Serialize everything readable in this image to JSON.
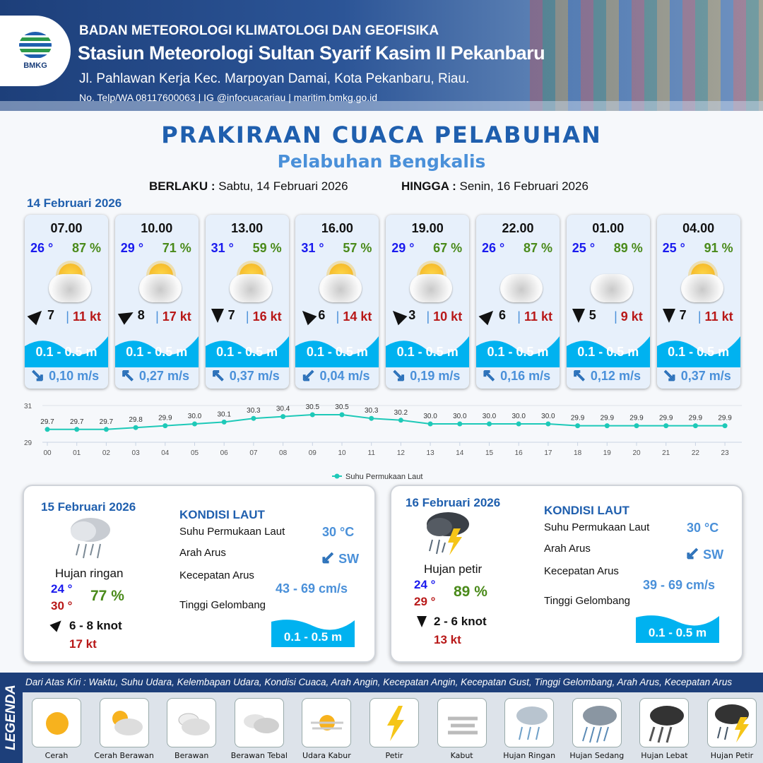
{
  "header": {
    "org": "BADAN METEOROLOGI KLIMATOLOGI DAN GEOFISIKA",
    "station": "Stasiun Meteorologi Sultan Syarif Kasim II Pekanbaru",
    "address": "Jl. Pahlawan Kerja Kec. Marpoyan Damai, Kota Pekanbaru, Riau.",
    "contact": "No. Telp/WA 08117600063 | IG @infocuacariau | maritim.bmkg.go.id",
    "logo_text": "BMKG"
  },
  "title": "PRAKIRAAN CUACA PELABUHAN",
  "subtitle": "Pelabuhan Bengkalis",
  "validity": {
    "from_label": "BERLAKU :",
    "from": "Sabtu, 14 Februari 2026",
    "to_label": "HINGGA :",
    "to": "Senin, 16 Februari 2026"
  },
  "day1_date": "14 Februari 2026",
  "forecasts": [
    {
      "time": "07.00",
      "temp": "26 °",
      "hum": "87 %",
      "cond": "Cerah Berawan",
      "wind_dir_deg": 45,
      "wind": "7",
      "gust": "11 kt",
      "wave": "0.1 - 0.5 m",
      "cur_dir": "↘",
      "cur": "0,10 m/s"
    },
    {
      "time": "10.00",
      "temp": "29 °",
      "hum": "71 %",
      "cond": "Cerah Berawan",
      "wind_dir_deg": 60,
      "wind": "8",
      "gust": "17 kt",
      "wave": "0.1 - 0.5 m",
      "cur_dir": "↖",
      "cur": "0,27 m/s"
    },
    {
      "time": "13.00",
      "temp": "31 °",
      "hum": "59 %",
      "cond": "Cerah Berawan",
      "wind_dir_deg": 180,
      "wind": "7",
      "gust": "16 kt",
      "wave": "0.1 - 0.5 m",
      "cur_dir": "↖",
      "cur": "0,37 m/s"
    },
    {
      "time": "16.00",
      "temp": "31 °",
      "hum": "57 %",
      "cond": "Cerah Berawan",
      "wind_dir_deg": -45,
      "wind": "6",
      "gust": "14 kt",
      "wave": "0.1 - 0.5 m",
      "cur_dir": "↙",
      "cur": "0,04 m/s"
    },
    {
      "time": "19.00",
      "temp": "29 °",
      "hum": "67 %",
      "cond": "Cerah Berawan",
      "wind_dir_deg": -45,
      "wind": "3",
      "gust": "10 kt",
      "wave": "0.1 - 0.5 m",
      "cur_dir": "↘",
      "cur": "0,19 m/s"
    },
    {
      "time": "22.00",
      "temp": "26 °",
      "hum": "87 %",
      "cond": "Berawan",
      "wind_dir_deg": 45,
      "wind": "6",
      "gust": "11 kt",
      "wave": "0.1 - 0.5 m",
      "cur_dir": "↖",
      "cur": "0,16 m/s"
    },
    {
      "time": "01.00",
      "temp": "25 °",
      "hum": "89 %",
      "cond": "Berawan",
      "wind_dir_deg": 180,
      "wind": "5",
      "gust": "9 kt",
      "wave": "0.1 - 0.5 m",
      "cur_dir": "↖",
      "cur": "0,12 m/s"
    },
    {
      "time": "04.00",
      "temp": "25 °",
      "hum": "91 %",
      "cond": "Cerah Berawan",
      "wind_dir_deg": 180,
      "wind": "7",
      "gust": "11 kt",
      "wave": "0.1 - 0.5 m",
      "cur_dir": "↘",
      "cur": "0,37 m/s"
    }
  ],
  "chart_data": {
    "type": "line",
    "categories": [
      "00",
      "01",
      "02",
      "03",
      "04",
      "05",
      "06",
      "07",
      "08",
      "09",
      "10",
      "11",
      "12",
      "13",
      "14",
      "15",
      "16",
      "17",
      "18",
      "19",
      "20",
      "21",
      "22",
      "23"
    ],
    "series": [
      {
        "name": "Suhu Permukaan Laut",
        "values": [
          29.7,
          29.7,
          29.7,
          29.8,
          29.9,
          30.0,
          30.1,
          30.3,
          30.4,
          30.5,
          30.5,
          30.3,
          30.2,
          30.0,
          30.0,
          30.0,
          30.0,
          30.0,
          29.9,
          29.9,
          29.9,
          29.9,
          29.9,
          29.9
        ]
      }
    ],
    "yticks": [
      "31",
      "29"
    ],
    "ylim": [
      29,
      31
    ],
    "legend": "bottom",
    "color": "#1ec9b8"
  },
  "days": [
    {
      "date": "15 Februari 2026",
      "cond": "Hujan ringan",
      "tmin": "24 °",
      "tmax": "30 °",
      "hum": "77 %",
      "wind": "6 - 8 knot",
      "gust": "17 kt",
      "sea_title": "KONDISI LAUT",
      "sst_label": "Suhu Permukaan Laut",
      "sst": "30 °C",
      "cur_dir_label": "Arah Arus",
      "cur_dir": "SW",
      "cur_speed_label": "Kecepatan Arus",
      "cur_speed": "43  - 69 cm/s",
      "wave_label": "Tinggi Gelombang",
      "wave": "0.1 - 0.5 m"
    },
    {
      "date": "16 Februari 2026",
      "cond": "Hujan petir",
      "tmin": "24 °",
      "tmax": "29 °",
      "hum": "89 %",
      "wind": "2 - 6 knot",
      "gust": "13 kt",
      "sea_title": "KONDISI LAUT",
      "sst_label": "Suhu Permukaan Laut",
      "sst": "30 °C",
      "cur_dir_label": "Arah Arus",
      "cur_dir": "SW",
      "cur_speed_label": "Kecepatan Arus",
      "cur_speed": "39  - 69 cm/s",
      "wave_label": "Tinggi Gelombang",
      "wave": "0.1 - 0.5 m"
    }
  ],
  "legend": {
    "title": "LEGENDA",
    "desc": "Dari Atas Kiri : Waktu, Suhu Udara, Kelembapan Udara, Kondisi Cuaca, Arah Angin, Kecepatan Angin, Kecepatan Gust, Tinggi Gelombang, Arah Arus, Kecepatan Arus",
    "items": [
      "Cerah",
      "Cerah Berawan",
      "Berawan",
      "Berawan Tebal",
      "Udara Kabur",
      "Petir",
      "Kabut",
      "Hujan Ringan",
      "Hujan Sedang",
      "Hujan Lebat",
      "Hujan Petir"
    ]
  },
  "colors": {
    "brand": "#1f5fae",
    "wave": "#00b2f0",
    "temp": "#1a1aee",
    "humidity": "#4a8a1a",
    "gust": "#b81818"
  }
}
